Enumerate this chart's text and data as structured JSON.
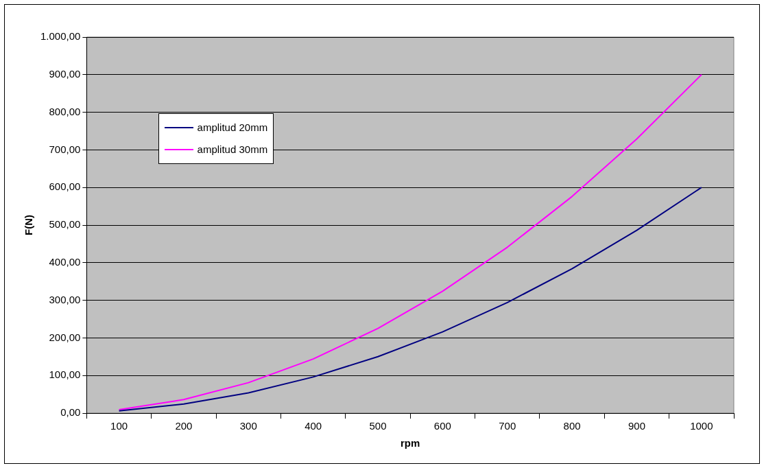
{
  "chart_data": {
    "type": "line",
    "xlabel": "rpm",
    "ylabel": "F(N)",
    "categories": [
      "100",
      "200",
      "300",
      "400",
      "500",
      "600",
      "700",
      "800",
      "900",
      "1000"
    ],
    "series": [
      {
        "name": "amplitud 20mm",
        "color": "#000080",
        "values": [
          6,
          24,
          54,
          96,
          150,
          216,
          294,
          384,
          486,
          600
        ]
      },
      {
        "name": "amplitud 30mm",
        "color": "#ff00ff",
        "values": [
          9,
          36,
          81,
          144,
          225,
          324,
          441,
          576,
          729,
          900
        ]
      }
    ],
    "ylim": [
      0,
      1000
    ],
    "yticks": [
      {
        "value": 0,
        "label": "0,00"
      },
      {
        "value": 100,
        "label": "100,00"
      },
      {
        "value": 200,
        "label": "200,00"
      },
      {
        "value": 300,
        "label": "300,00"
      },
      {
        "value": 400,
        "label": "400,00"
      },
      {
        "value": 500,
        "label": "500,00"
      },
      {
        "value": 600,
        "label": "600,00"
      },
      {
        "value": 700,
        "label": "700,00"
      },
      {
        "value": 800,
        "label": "800,00"
      },
      {
        "value": 900,
        "label": "900,00"
      },
      {
        "value": 1000,
        "label": "1.000,00"
      }
    ],
    "grid": "y",
    "legend": "top left",
    "marker": "none",
    "line_style": "solid"
  }
}
